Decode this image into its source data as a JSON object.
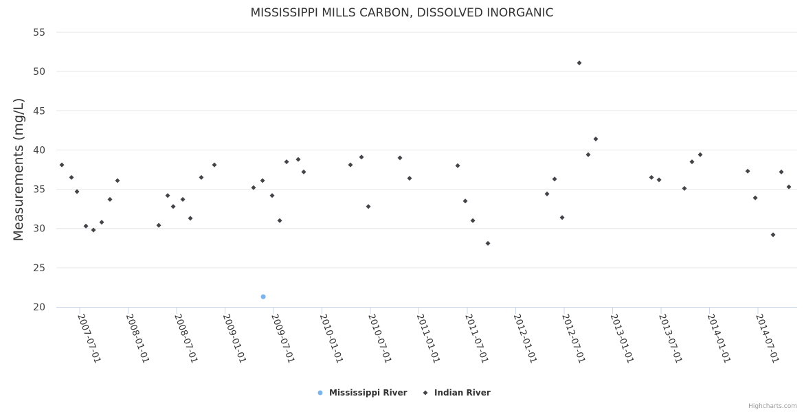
{
  "chart_data": {
    "type": "scatter",
    "title": "MISSISSIPPI MILLS CARBON, DISSOLVED INORGANIC",
    "ylabel": "Measurements (mg/L)",
    "xlabel": "",
    "ylim": [
      20,
      55
    ],
    "yticks": [
      20,
      25,
      30,
      35,
      40,
      45,
      50,
      55
    ],
    "xlim": [
      2007.259,
      2014.904
    ],
    "xticks": [
      {
        "value": 2007.5,
        "label": "2007-07-01"
      },
      {
        "value": 2008.0,
        "label": "2008-01-01"
      },
      {
        "value": 2008.5,
        "label": "2008-07-01"
      },
      {
        "value": 2009.0,
        "label": "2009-01-01"
      },
      {
        "value": 2009.5,
        "label": "2009-07-01"
      },
      {
        "value": 2010.0,
        "label": "2010-01-01"
      },
      {
        "value": 2010.5,
        "label": "2010-07-01"
      },
      {
        "value": 2011.0,
        "label": "2011-01-01"
      },
      {
        "value": 2011.5,
        "label": "2011-07-01"
      },
      {
        "value": 2012.0,
        "label": "2012-01-01"
      },
      {
        "value": 2012.5,
        "label": "2012-07-01"
      },
      {
        "value": 2013.0,
        "label": "2013-01-01"
      },
      {
        "value": 2013.5,
        "label": "2013-07-01"
      },
      {
        "value": 2014.0,
        "label": "2014-01-01"
      },
      {
        "value": 2014.5,
        "label": "2014-07-01"
      }
    ],
    "grid": true,
    "legend_position": "bottom-center",
    "series": [
      {
        "name": "Mississippi River",
        "color": "#7cb5ec",
        "marker": "circle",
        "points": [
          [
            2009.394,
            21.3
          ]
        ]
      },
      {
        "name": "Indian River",
        "color": "#434348",
        "marker": "diamond",
        "points": [
          [
            2007.316,
            38.1
          ],
          [
            2007.415,
            36.5
          ],
          [
            2007.472,
            34.7
          ],
          [
            2007.564,
            30.3
          ],
          [
            2007.642,
            29.8
          ],
          [
            2007.727,
            30.8
          ],
          [
            2007.812,
            33.7
          ],
          [
            2007.89,
            36.1
          ],
          [
            2008.316,
            30.4
          ],
          [
            2008.408,
            34.2
          ],
          [
            2008.465,
            32.8
          ],
          [
            2008.564,
            33.7
          ],
          [
            2008.642,
            31.3
          ],
          [
            2008.755,
            36.5
          ],
          [
            2008.89,
            38.1
          ],
          [
            2009.294,
            35.2
          ],
          [
            2009.387,
            36.1
          ],
          [
            2009.486,
            34.2
          ],
          [
            2009.564,
            31.0
          ],
          [
            2009.635,
            38.5
          ],
          [
            2009.755,
            38.8
          ],
          [
            2009.812,
            37.2
          ],
          [
            2010.294,
            38.1
          ],
          [
            2010.408,
            39.1
          ],
          [
            2010.479,
            32.8
          ],
          [
            2010.805,
            39.0
          ],
          [
            2010.904,
            36.4
          ],
          [
            2011.401,
            38.0
          ],
          [
            2011.479,
            33.5
          ],
          [
            2011.557,
            31.0
          ],
          [
            2011.713,
            28.1
          ],
          [
            2012.323,
            34.4
          ],
          [
            2012.401,
            36.3
          ],
          [
            2012.479,
            31.4
          ],
          [
            2012.656,
            51.1
          ],
          [
            2012.748,
            39.4
          ],
          [
            2012.826,
            41.4
          ],
          [
            2013.401,
            36.5
          ],
          [
            2013.479,
            36.2
          ],
          [
            2013.741,
            35.1
          ],
          [
            2013.819,
            38.5
          ],
          [
            2013.904,
            39.4
          ],
          [
            2014.394,
            37.3
          ],
          [
            2014.472,
            33.9
          ],
          [
            2014.656,
            29.2
          ],
          [
            2014.741,
            37.2
          ],
          [
            2014.819,
            35.3
          ]
        ]
      }
    ]
  },
  "credits": "Highcharts.com"
}
